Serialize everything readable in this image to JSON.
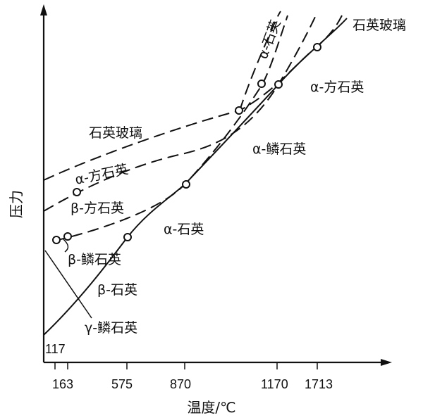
{
  "axes": {
    "ylabel": "压力",
    "xlabel": "温度/℃",
    "x_ticks": [
      "163",
      "575",
      "870",
      "1170",
      "1713"
    ],
    "y_tick": "117"
  },
  "phases": {
    "quartz_glass_top": "石英玻璃",
    "alpha_quartz_top": "α-石英",
    "alpha_cristobalite_right": "α-方石英",
    "alpha_tridymite_region": "α-鳞石英",
    "quartz_glass_left": "石英玻璃",
    "alpha_cristobalite_left": "α-方石英",
    "beta_cristobalite": "β-方石英",
    "alpha_quartz_mid": "α-石英",
    "beta_tridymite": "β-鳞石英",
    "beta_quartz": "β-石英",
    "gamma_tridymite": "γ-鳞石英"
  },
  "colors": {
    "ink": "#111111",
    "background": "#ffffff"
  }
}
